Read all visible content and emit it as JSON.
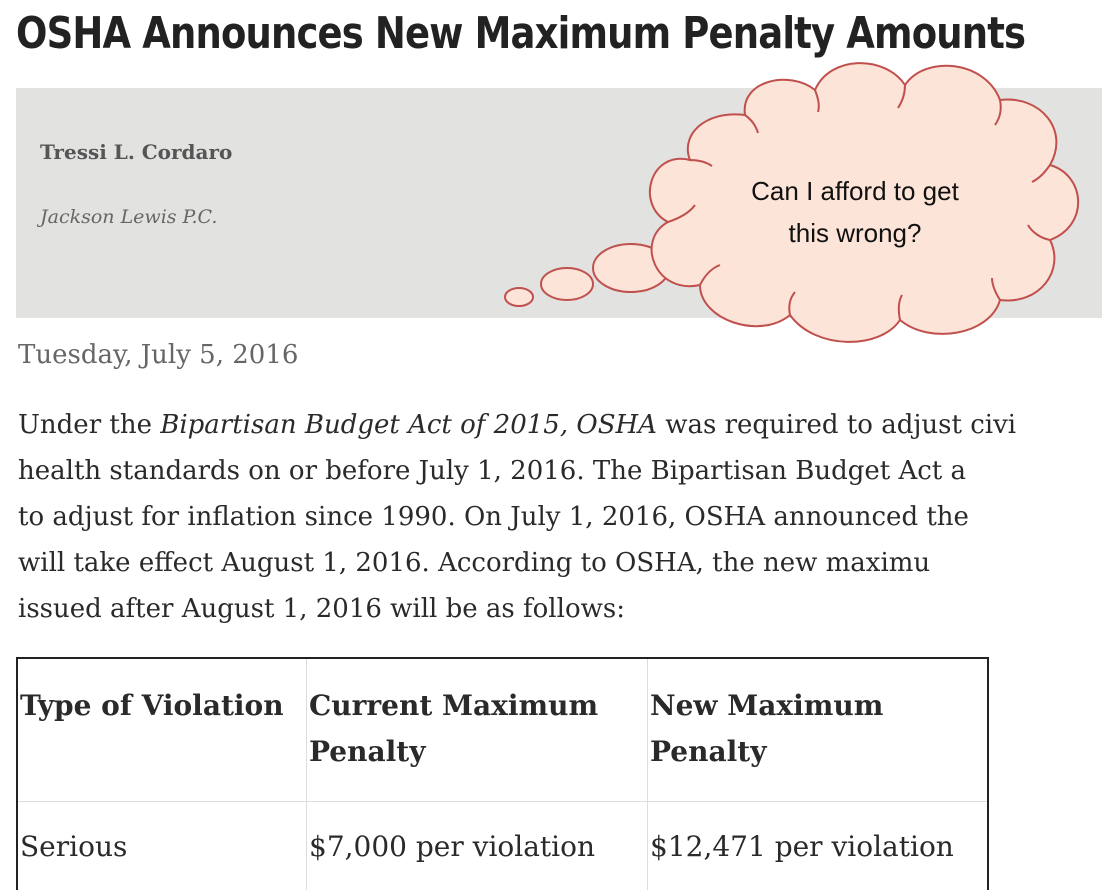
{
  "article": {
    "headline": "OSHA Announces New Maximum Penalty Amounts",
    "author": "Tressi L. Cordaro",
    "firm": "Jackson Lewis P.C.",
    "date": "Tuesday, July 5, 2016",
    "body_lines": [
      [
        "Under the ",
        "Bipartisan Budget Act of 2015, OSHA",
        " was required to adjust civi"
      ],
      [
        "health standards on or before July 1, 2016.  The Bipartisan Budget Act a",
        "",
        ""
      ],
      [
        "to adjust for inflation since 1990. On July 1, 2016, OSHA announced the",
        "",
        ""
      ],
      [
        "will take effect August 1, 2016.   According to OSHA, the new maximu",
        "",
        ""
      ],
      [
        "issued after August 1, 2016 will be as follows:",
        "",
        ""
      ]
    ]
  },
  "thought_bubble": {
    "text": "Can I afford to get\nthis wrong?",
    "fill_color": "#fde4d8",
    "stroke_color": "#c0504d"
  },
  "penalty_table": {
    "headers": [
      "Type of Violation",
      " Current Maximum Penalty",
      "New Maximum Penalty"
    ],
    "rows": [
      [
        "Serious",
        "$7,000 per violation",
        "$12,471 per violation"
      ]
    ]
  },
  "colors": {
    "byline_background": "#e2e2e0"
  }
}
